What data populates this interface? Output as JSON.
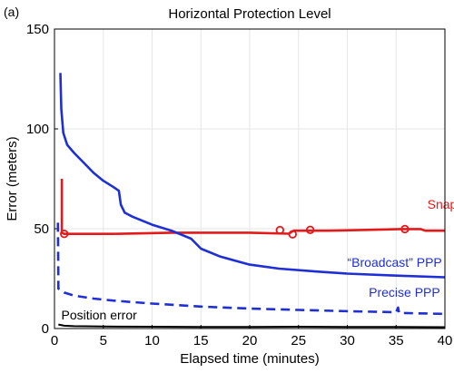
{
  "panel_label": "(a)",
  "chart_data": {
    "type": "line",
    "title": "Horizontal Protection Level",
    "xlabel": "Elapsed time (minutes)",
    "ylabel": "Error (meters)",
    "xlim": [
      0,
      40
    ],
    "ylim": [
      0,
      150
    ],
    "xticks": [
      0,
      5,
      10,
      15,
      20,
      25,
      30,
      35,
      40
    ],
    "yticks": [
      0,
      50,
      100,
      150
    ],
    "grid": true,
    "series": [
      {
        "name": "Snapshot",
        "color": "#e31a1c",
        "dash": "solid",
        "label_at": [
          38.2,
          60
        ],
        "points": [
          [
            0.75,
            75
          ],
          [
            0.75,
            48
          ],
          [
            1.0,
            47.4
          ],
          [
            6,
            47.4
          ],
          [
            12,
            48
          ],
          [
            20,
            48
          ],
          [
            24,
            47.5
          ],
          [
            24.5,
            49
          ],
          [
            28,
            49
          ],
          [
            33,
            49.5
          ],
          [
            35.5,
            49.8
          ],
          [
            37.5,
            49.8
          ],
          [
            38,
            49
          ],
          [
            40,
            49
          ]
        ],
        "markers": [
          [
            1.0,
            47.4
          ],
          [
            23.1,
            49.3
          ],
          [
            24.4,
            47.2
          ],
          [
            26.2,
            49.4
          ],
          [
            35.9,
            49.8
          ]
        ]
      },
      {
        "name": "“Broadcast” PPP",
        "color": "#1f2fd6",
        "dash": "solid",
        "label_at": [
          30.0,
          31
        ],
        "points": [
          [
            0.6,
            128
          ],
          [
            0.7,
            110
          ],
          [
            0.9,
            98
          ],
          [
            1.3,
            92
          ],
          [
            2,
            88
          ],
          [
            3,
            83
          ],
          [
            4,
            78
          ],
          [
            5,
            74
          ],
          [
            6,
            71
          ],
          [
            6.6,
            69
          ],
          [
            6.8,
            62
          ],
          [
            7.2,
            58
          ],
          [
            8,
            56
          ],
          [
            10,
            52
          ],
          [
            12,
            49
          ],
          [
            14,
            45
          ],
          [
            14.4,
            43
          ],
          [
            15,
            40
          ],
          [
            17,
            36
          ],
          [
            20,
            32
          ],
          [
            23,
            30
          ],
          [
            27,
            28.5
          ],
          [
            30,
            27.5
          ],
          [
            35,
            26.5
          ],
          [
            40,
            25.7
          ]
        ]
      },
      {
        "name": "Precise PPP",
        "color": "#1f2fd6",
        "dash": "dashed",
        "label_at": [
          32.2,
          16
        ],
        "points": [
          [
            0.35,
            53
          ],
          [
            0.4,
            20
          ],
          [
            1,
            18
          ],
          [
            2,
            16.5
          ],
          [
            4,
            15
          ],
          [
            6,
            14
          ],
          [
            10,
            12.5
          ],
          [
            15,
            11
          ],
          [
            20,
            10
          ],
          [
            25,
            9.3
          ],
          [
            30,
            8.7
          ],
          [
            35,
            8.2
          ],
          [
            35.2,
            10.5
          ],
          [
            35.3,
            7.8
          ],
          [
            40,
            7.3
          ]
        ]
      },
      {
        "name": "Position error",
        "color": "#000000",
        "dash": "solid",
        "label_at": [
          0.7,
          4.5
        ],
        "points": [
          [
            0.4,
            2
          ],
          [
            1,
            1.4
          ],
          [
            2,
            1.2
          ],
          [
            5,
            1.0
          ],
          [
            10,
            0.9
          ],
          [
            15,
            0.8
          ],
          [
            20,
            0.8
          ],
          [
            25,
            0.9
          ],
          [
            30,
            0.8
          ],
          [
            35,
            0.8
          ],
          [
            40,
            0.7
          ]
        ]
      }
    ]
  }
}
